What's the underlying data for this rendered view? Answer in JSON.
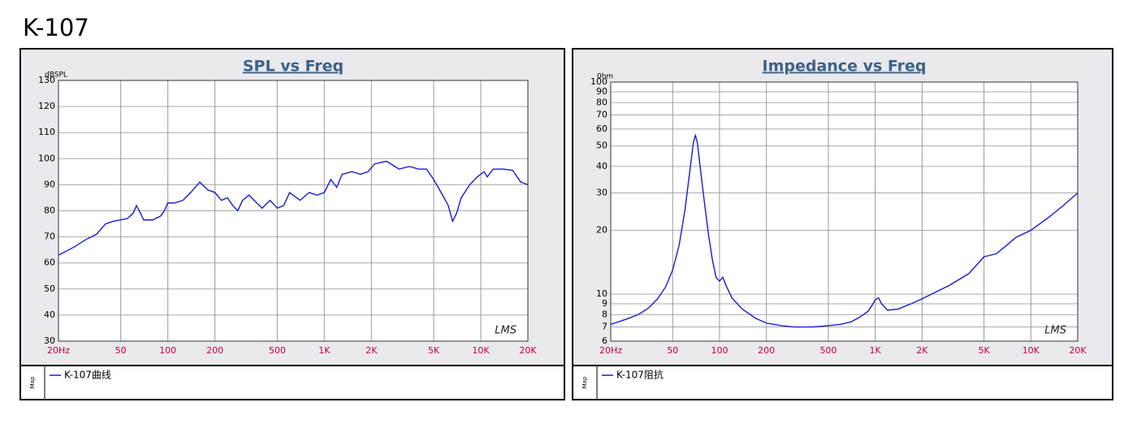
{
  "page_title": "K-107",
  "chart_data": [
    {
      "type": "line",
      "title": "SPL vs Freq",
      "ylabel": "dBSPL",
      "watermark": "LMS",
      "legend_title": "Map",
      "xscale": "log",
      "yscale": "linear",
      "grid": true,
      "xlim": [
        20,
        20000
      ],
      "ylim": [
        30,
        130
      ],
      "xticks": [
        {
          "value": 20,
          "label": "20Hz"
        },
        50,
        100,
        200,
        500,
        {
          "value": 1000,
          "label": "1K"
        },
        {
          "value": 2000,
          "label": "2K"
        },
        {
          "value": 5000,
          "label": "5K"
        },
        {
          "value": 10000,
          "label": "10K"
        },
        {
          "value": 20000,
          "label": "20K"
        }
      ],
      "yticks": [
        30,
        40,
        50,
        60,
        70,
        80,
        90,
        100,
        110,
        120,
        130
      ],
      "x": [
        20,
        25,
        30,
        35,
        40,
        45,
        50,
        55,
        60,
        63,
        67,
        70,
        80,
        90,
        95,
        100,
        110,
        125,
        140,
        160,
        180,
        200,
        220,
        240,
        260,
        280,
        300,
        330,
        370,
        400,
        450,
        500,
        550,
        600,
        700,
        800,
        900,
        1000,
        1100,
        1200,
        1300,
        1500,
        1700,
        1900,
        2100,
        2500,
        3000,
        3500,
        4000,
        4500,
        5000,
        5700,
        6200,
        6600,
        7000,
        7500,
        8500,
        9500,
        10500,
        11000,
        12000,
        14000,
        16000,
        18000,
        20000
      ],
      "series": [
        {
          "name": "K-107曲线",
          "color": "#1a1ad2",
          "values": [
            63,
            66,
            69,
            71,
            75,
            76,
            76.5,
            77,
            79,
            82,
            79,
            76.5,
            76.5,
            78,
            80,
            83,
            83,
            84,
            87,
            91,
            88,
            87,
            84,
            85,
            82,
            80,
            84,
            86,
            83,
            81,
            84,
            81,
            82,
            87,
            84,
            87,
            86,
            87,
            92,
            89,
            94,
            95,
            94,
            95,
            98,
            99,
            96,
            97,
            96,
            96,
            92,
            86,
            82,
            76,
            79,
            85,
            90,
            93,
            95,
            93,
            96,
            96,
            95.5,
            91,
            90
          ]
        }
      ]
    },
    {
      "type": "line",
      "title": "Impedance vs Freq",
      "ylabel": "0hm",
      "watermark": "LMS",
      "legend_title": "Map",
      "xscale": "log",
      "yscale": "log",
      "grid": true,
      "xlim": [
        20,
        20000
      ],
      "ylim": [
        6,
        100
      ],
      "xticks": [
        {
          "value": 20,
          "label": "20Hz"
        },
        50,
        100,
        200,
        500,
        {
          "value": 1000,
          "label": "1K"
        },
        {
          "value": 2000,
          "label": "2K"
        },
        {
          "value": 5000,
          "label": "5K"
        },
        {
          "value": 10000,
          "label": "10K"
        },
        {
          "value": 20000,
          "label": "20K"
        }
      ],
      "yticks": [
        6,
        7,
        8,
        9,
        10,
        20,
        30,
        40,
        50,
        60,
        70,
        80,
        90,
        100
      ],
      "x": [
        20,
        25,
        30,
        35,
        40,
        45,
        50,
        55,
        60,
        65,
        68,
        70,
        72,
        75,
        80,
        85,
        90,
        95,
        100,
        105,
        110,
        120,
        140,
        170,
        200,
        250,
        300,
        400,
        500,
        600,
        700,
        800,
        900,
        950,
        1000,
        1050,
        1100,
        1200,
        1400,
        1700,
        2000,
        3000,
        4000,
        5000,
        6000,
        7000,
        8000,
        10000,
        13000,
        16000,
        20000
      ],
      "series": [
        {
          "name": "K-107阻抗",
          "color": "#1a1ad2",
          "values": [
            7.2,
            7.6,
            8.0,
            8.6,
            9.5,
            10.8,
            13,
            17,
            25,
            40,
            52,
            56,
            52,
            40,
            27,
            19,
            14.5,
            12,
            11.5,
            12,
            11,
            9.6,
            8.5,
            7.7,
            7.3,
            7.1,
            7.0,
            7.0,
            7.1,
            7.2,
            7.4,
            7.8,
            8.3,
            8.8,
            9.4,
            9.6,
            9.0,
            8.4,
            8.5,
            9.0,
            9.5,
            11,
            12.5,
            15,
            15.5,
            17,
            18.5,
            20,
            23,
            26,
            30
          ]
        }
      ]
    }
  ]
}
